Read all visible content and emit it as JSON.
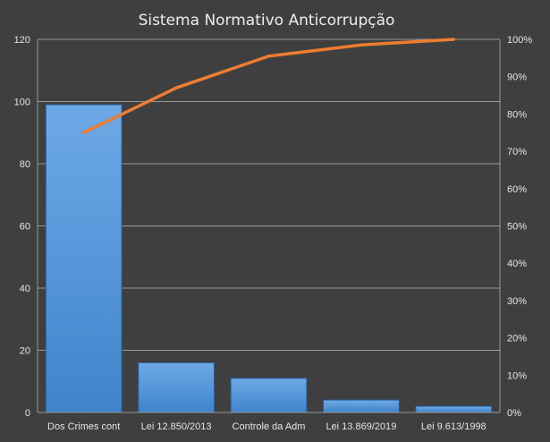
{
  "chart_data": {
    "type": "bar",
    "title": "Sistema Normativo Anticorrupção",
    "categories": [
      "Dos Crimes cont",
      "Lei 12.850/2013",
      "Controle da Adm",
      "Lei 13.869/2019",
      "Lei 9.613/1998"
    ],
    "series": [
      {
        "kind": "bar",
        "axis": "left",
        "values": [
          99,
          16,
          11,
          4,
          2
        ]
      },
      {
        "kind": "line",
        "axis": "right",
        "values": [
          75,
          87,
          95.5,
          98.5,
          100
        ]
      }
    ],
    "ylim": [
      0,
      120
    ],
    "yticks": [
      "0",
      "20",
      "40",
      "60",
      "80",
      "100",
      "120"
    ],
    "y2lim": [
      0,
      100
    ],
    "y2ticks": [
      "0%",
      "10%",
      "20%",
      "30%",
      "40%",
      "50%",
      "60%",
      "70%",
      "80%",
      "90%",
      "100%"
    ],
    "grid": true,
    "legend": "none",
    "colors": {
      "background": "#3f3f3f",
      "bar": "#4a8ed8",
      "bar_top": "#6ea9e6",
      "line": "#ed7d31",
      "grid": "#9a9a9a",
      "text": "#e6e6e6"
    }
  }
}
